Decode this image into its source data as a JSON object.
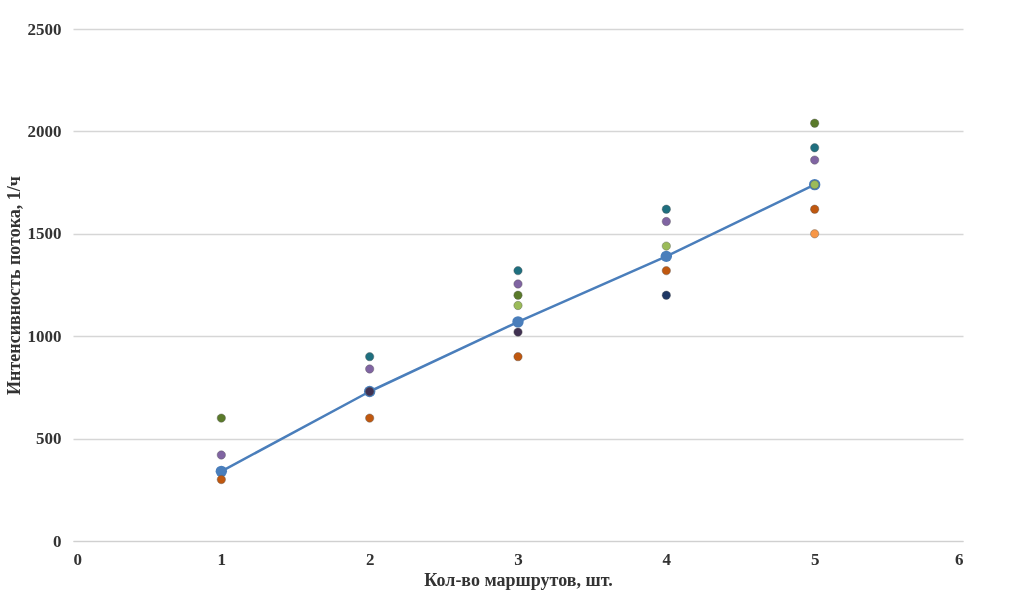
{
  "chart_data": {
    "type": "scatter",
    "xlabel": "Кол-во маршрутов, шт.",
    "ylabel": "Интенсивность потока, 1/ч",
    "xlim": [
      0,
      6
    ],
    "xticks": [
      0,
      1,
      2,
      3,
      4,
      5,
      6
    ],
    "ylim": [
      0,
      2500
    ],
    "yticks": [
      0,
      500,
      1000,
      1500,
      2000,
      2500
    ],
    "grid": "y",
    "marker": "circle",
    "series": [
      {
        "color": "#5a7a2a",
        "x": [
          1,
          3,
          5
        ],
        "values": [
          600,
          1200,
          2040
        ]
      },
      {
        "color": "#8064a2",
        "x": [
          1,
          2,
          3,
          4,
          5
        ],
        "values": [
          420,
          840,
          1255,
          1560,
          1860
        ]
      },
      {
        "color": "#c0580f",
        "x": [
          1,
          2,
          3,
          4,
          5
        ],
        "values": [
          300,
          600,
          900,
          1320,
          1620
        ]
      },
      {
        "color": "#1f6f7f",
        "x": [
          2,
          3,
          4,
          5
        ],
        "values": [
          900,
          1320,
          1620,
          1920
        ]
      },
      {
        "color": "#403152",
        "x": [
          2,
          3
        ],
        "values": [
          730,
          1020
        ]
      },
      {
        "color": "#9bbb59",
        "x": [
          3,
          4,
          5
        ],
        "values": [
          1150,
          1440,
          1740
        ]
      },
      {
        "color": "#1f3864",
        "x": [
          4
        ],
        "values": [
          1200
        ]
      },
      {
        "color": "#f79646",
        "x": [
          5
        ],
        "values": [
          1500
        ]
      },
      {
        "type": "line",
        "color": "#4a7ebb",
        "x": [
          1,
          2,
          3,
          4,
          5
        ],
        "values": [
          340,
          730,
          1070,
          1390,
          1740
        ],
        "line_style": "solid"
      }
    ]
  }
}
